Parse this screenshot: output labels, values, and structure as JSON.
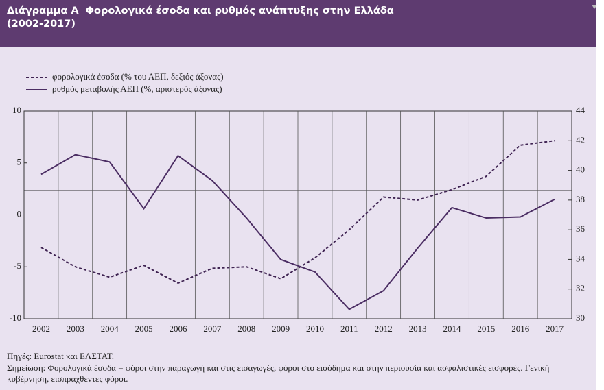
{
  "chart_data": {
    "type": "line",
    "title_lines": [
      "Διάγραμμα Α  Φορολογικά έσοδα και ρυθμός ανάπτυξης στην Ελλάδα",
      "(2002-2017)"
    ],
    "categories": [
      "2002",
      "2003",
      "2004",
      "2005",
      "2006",
      "2007",
      "2008",
      "2009",
      "2010",
      "2011",
      "2012",
      "2013",
      "2014",
      "2015",
      "2016",
      "2017"
    ],
    "series": [
      {
        "name": "φορολογικά έσοδα (% του ΑΕΠ, δεξιός άξονας)",
        "color": "#3f2352",
        "dash": true,
        "axis": "y2",
        "values": [
          34.8,
          33.5,
          32.8,
          33.6,
          32.4,
          33.4,
          33.5,
          32.7,
          34.1,
          36.0,
          38.2,
          38.0,
          38.7,
          39.6,
          41.7,
          42.0
        ]
      },
      {
        "name": "ρυθμός μεταβολής ΑΕΠ (%, αριστερός άξονας)",
        "color": "#4b2d63",
        "dash": false,
        "axis": "y",
        "values": [
          3.9,
          5.8,
          5.1,
          0.6,
          5.7,
          3.3,
          -0.3,
          -4.3,
          -5.5,
          -9.1,
          -7.3,
          -3.2,
          0.7,
          -0.3,
          -0.2,
          1.5
        ]
      }
    ],
    "ylim": [
      -10,
      10
    ],
    "yticks": [
      -10,
      -5,
      0,
      5,
      10
    ],
    "y2lim": [
      30,
      44
    ],
    "y2ticks": [
      30,
      32,
      34,
      36,
      38,
      40,
      42,
      44
    ],
    "sources": "Πηγές: Eurostat και ΕΛΣΤΑΤ.",
    "note": "Σημείωση: Φορολογικά έσοδα = φόροι στην παραγωγή και στις εισαγωγές, φόροι στο εισόδημα και στην περιουσία και ασφαλιστικές εισφορές. Γενική κυβέρνηση, εισπραχθέντες φόροι."
  }
}
